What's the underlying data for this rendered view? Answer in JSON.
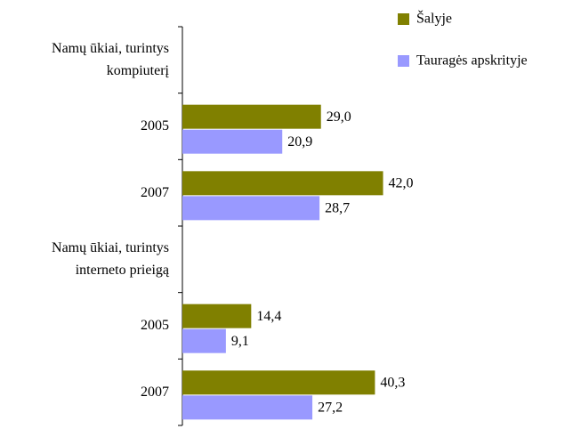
{
  "chart_data": {
    "type": "hbar",
    "categories": [
      "Namų ūkiai, turintys kompiuterį",
      "2005",
      "2007",
      "Namų ūkiai, turintys interneto prieigą",
      "2005",
      "2007"
    ],
    "series": [
      {
        "name": "Šalyje",
        "color": "#808000",
        "values": [
          null,
          29.0,
          42.0,
          null,
          14.4,
          40.3
        ],
        "value_labels": [
          null,
          "29,0",
          "42,0",
          null,
          "14,4",
          "40,3"
        ]
      },
      {
        "name": "Tauragės apskrityje",
        "color": "#9999ff",
        "values": [
          null,
          20.9,
          28.7,
          null,
          9.1,
          27.2
        ],
        "value_labels": [
          null,
          "20,9",
          "28,7",
          null,
          "9,1",
          "27,2"
        ]
      }
    ],
    "legend": "upper right"
  }
}
